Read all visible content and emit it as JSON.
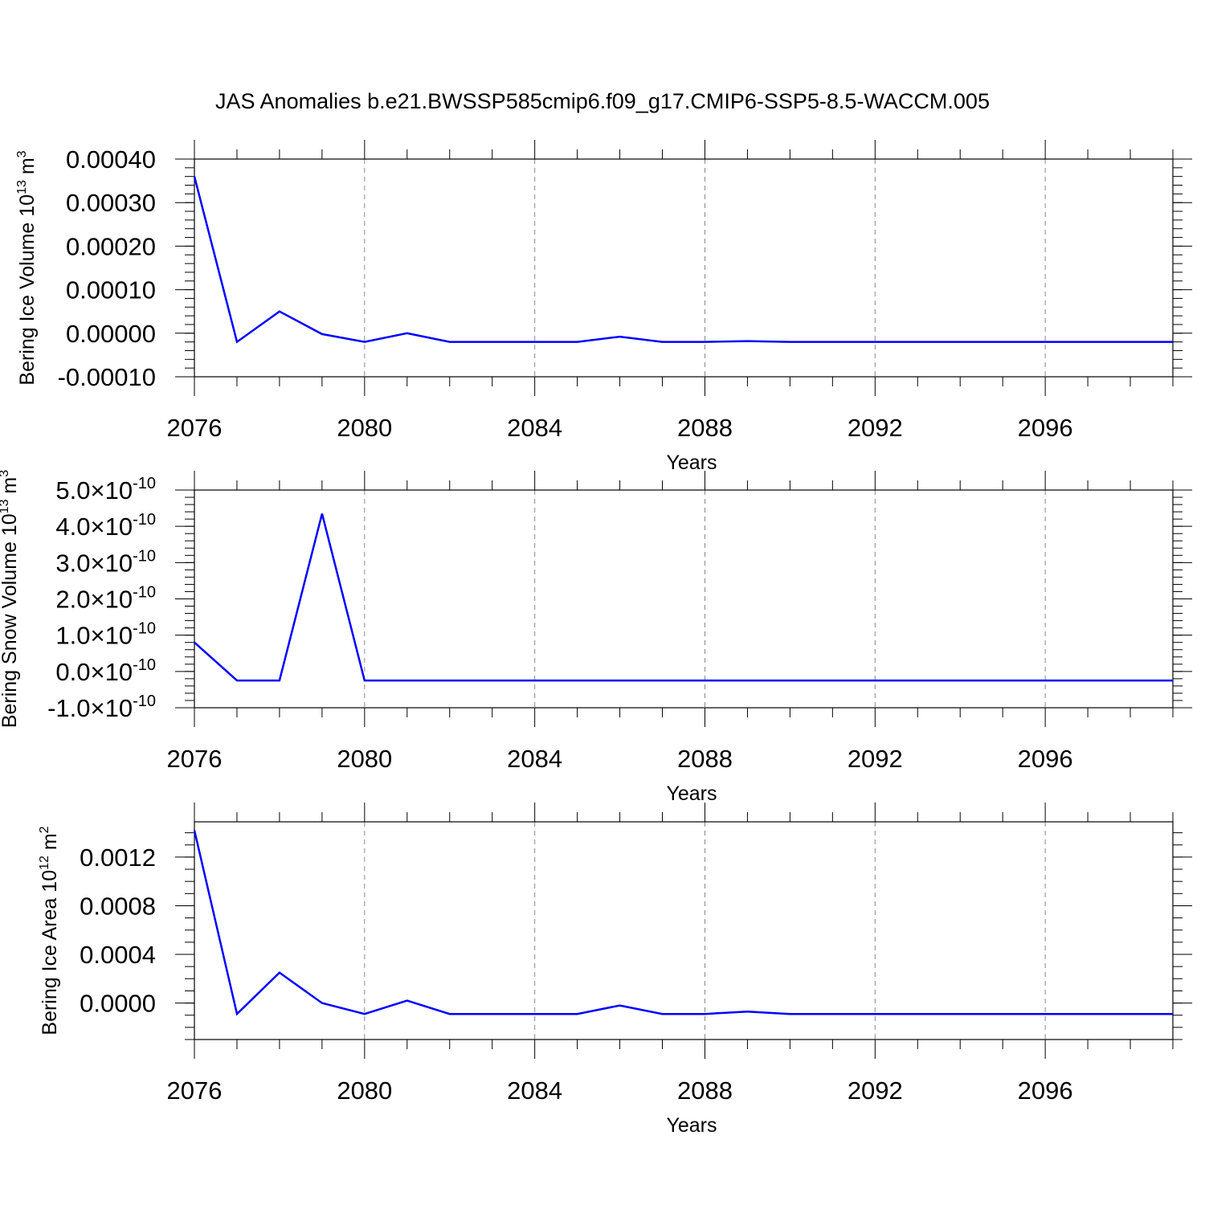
{
  "title": "JAS Anomalies b.e21.BWSSP585cmip6.f09_g17.CMIP6-SSP5-8.5-WACCM.005",
  "line_color": "#0000ff",
  "chart_data": [
    {
      "type": "line",
      "ylabel": "Bering Ice Volume 10",
      "ylabel_exp": "13",
      "ylabel_unit": " m",
      "ylabel_unit_exp": "3",
      "xlabel": "Years",
      "xlim": [
        2076,
        2099
      ],
      "ylim": [
        -0.0001,
        0.0004
      ],
      "grid": "vertical dashed at major x ticks",
      "x_major_ticks": [
        2076,
        2080,
        2084,
        2088,
        2092,
        2096
      ],
      "x_tick_labels": [
        "2076",
        "2080",
        "2084",
        "2088",
        "2092",
        "2096"
      ],
      "y_major_ticks": [
        -0.0001,
        0,
        0.0001,
        0.0002,
        0.0003,
        0.0004
      ],
      "y_tick_labels": [
        "-0.00010",
        "0.00000",
        "0.00010",
        "0.00020",
        "0.00030",
        "0.00040"
      ],
      "y_minor_step": 2e-05,
      "x": [
        2076,
        2077,
        2078,
        2079,
        2080,
        2081,
        2082,
        2083,
        2084,
        2085,
        2086,
        2087,
        2088,
        2089,
        2090,
        2091,
        2092,
        2093,
        2094,
        2095,
        2096,
        2097,
        2098,
        2099
      ],
      "values": [
        0.00036,
        -2e-05,
        5e-05,
        -2e-06,
        -2e-05,
        0.0,
        -2e-05,
        -2e-05,
        -2e-05,
        -2e-05,
        -8e-06,
        -2e-05,
        -2e-05,
        -1.8e-05,
        -2e-05,
        -2e-05,
        -2e-05,
        -2e-05,
        -2e-05,
        -2e-05,
        -2e-05,
        -2e-05,
        -2e-05,
        -2e-05
      ]
    },
    {
      "type": "line",
      "ylabel": "Bering Snow Volume 10",
      "ylabel_exp": "13",
      "ylabel_unit": " m",
      "ylabel_unit_exp": "3",
      "xlabel": "Years",
      "xlim": [
        2076,
        2099
      ],
      "ylim": [
        -1e-10,
        5e-10
      ],
      "grid": "vertical dashed at major x ticks",
      "x_major_ticks": [
        2076,
        2080,
        2084,
        2088,
        2092,
        2096
      ],
      "x_tick_labels": [
        "2076",
        "2080",
        "2084",
        "2088",
        "2092",
        "2096"
      ],
      "y_major_ticks": [
        -1e-10,
        0,
        1e-10,
        2e-10,
        3e-10,
        4e-10,
        5e-10
      ],
      "y_tick_mantissas": [
        "-1.0",
        "0.0",
        "1.0",
        "2.0",
        "3.0",
        "4.0",
        "5.0"
      ],
      "y_tick_times": "×10",
      "y_tick_exp": "-10",
      "y_minor_step": 2e-11,
      "x": [
        2076,
        2077,
        2078,
        2079,
        2080,
        2081,
        2082,
        2083,
        2084,
        2085,
        2086,
        2087,
        2088,
        2089,
        2090,
        2091,
        2092,
        2093,
        2094,
        2095,
        2096,
        2097,
        2098,
        2099
      ],
      "values": [
        8e-11,
        -2.5e-11,
        -2.5e-11,
        4.35e-10,
        -2.5e-11,
        -2.5e-11,
        -2.5e-11,
        -2.5e-11,
        -2.5e-11,
        -2.5e-11,
        -2.5e-11,
        -2.5e-11,
        -2.5e-11,
        -2.5e-11,
        -2.5e-11,
        -2.5e-11,
        -2.5e-11,
        -2.5e-11,
        -2.5e-11,
        -2.5e-11,
        -2.5e-11,
        -2.5e-11,
        -2.5e-11,
        -2.5e-11
      ]
    },
    {
      "type": "line",
      "ylabel": "Bering Ice Area 10",
      "ylabel_exp": "12",
      "ylabel_unit": " m",
      "ylabel_unit_exp": "2",
      "xlabel": "Years",
      "xlim": [
        2076,
        2099
      ],
      "ylim": [
        -0.0003,
        0.00149
      ],
      "grid": "vertical dashed at major x ticks",
      "x_major_ticks": [
        2076,
        2080,
        2084,
        2088,
        2092,
        2096
      ],
      "x_tick_labels": [
        "2076",
        "2080",
        "2084",
        "2088",
        "2092",
        "2096"
      ],
      "y_major_ticks": [
        0,
        0.0004,
        0.0008,
        0.0012
      ],
      "y_tick_labels": [
        "0.0000",
        "0.0004",
        "0.0008",
        "0.0012"
      ],
      "y_minor_step": 0.0001,
      "x": [
        2076,
        2077,
        2078,
        2079,
        2080,
        2081,
        2082,
        2083,
        2084,
        2085,
        2086,
        2087,
        2088,
        2089,
        2090,
        2091,
        2092,
        2093,
        2094,
        2095,
        2096,
        2097,
        2098,
        2099
      ],
      "values": [
        0.00142,
        -9e-05,
        0.00025,
        0.0,
        -9e-05,
        2e-05,
        -9e-05,
        -9e-05,
        -9e-05,
        -9e-05,
        -2e-05,
        -9e-05,
        -9e-05,
        -7e-05,
        -9e-05,
        -9e-05,
        -9e-05,
        -9e-05,
        -9e-05,
        -9e-05,
        -9e-05,
        -9e-05,
        -9e-05,
        -9e-05
      ]
    }
  ]
}
